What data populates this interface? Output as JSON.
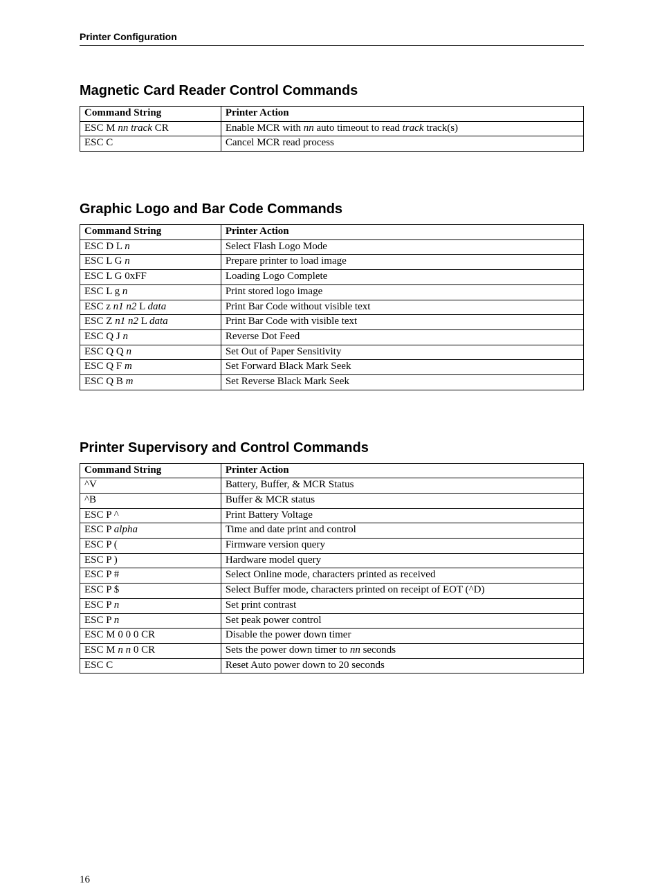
{
  "header": "Printer Configuration",
  "page_number": "16",
  "sections": {
    "mcr": {
      "title": "Magnetic Card Reader Control Commands",
      "columns": [
        "Command String",
        "Printer Action"
      ],
      "rows": [
        {
          "cmd_pre": "ESC M ",
          "cmd_it1": "nn track",
          "cmd_post": " CR",
          "act_pre": "Enable MCR with ",
          "act_it1": "nn",
          "act_mid": " auto timeout to read ",
          "act_it2": "track",
          "act_post": " track(s)"
        },
        {
          "cmd_pre": "ESC C",
          "act_pre": "Cancel MCR read process"
        }
      ]
    },
    "logo": {
      "title": "Graphic Logo and Bar Code Commands",
      "columns": [
        "Command String",
        "Printer Action"
      ],
      "rows": [
        {
          "cmd_pre": "ESC D L ",
          "cmd_it1": "n",
          "act_pre": "Select Flash Logo Mode"
        },
        {
          "cmd_pre": "ESC L G ",
          "cmd_it1": "n",
          "act_pre": "Prepare printer to load image"
        },
        {
          "cmd_pre": "ESC L G 0xFF",
          "act_pre": "Loading Logo Complete"
        },
        {
          "cmd_pre": "ESC L g ",
          "cmd_it1": "n",
          "act_pre": "Print stored logo image"
        },
        {
          "cmd_pre": "ESC z ",
          "cmd_it1": "n1 n2",
          "cmd_mid": " L ",
          "cmd_it2": "data",
          "act_pre": "Print Bar Code without visible text"
        },
        {
          "cmd_pre": "ESC Z ",
          "cmd_it1": "n1 n2",
          "cmd_mid": " L ",
          "cmd_it2": "data",
          "act_pre": "Print Bar Code with visible text"
        },
        {
          "cmd_pre": "ESC Q J ",
          "cmd_it1": "n",
          "act_pre": "Reverse Dot Feed"
        },
        {
          "cmd_pre": "ESC Q Q ",
          "cmd_it1": "n",
          "act_pre": "Set Out of Paper Sensitivity"
        },
        {
          "cmd_pre": "ESC Q F ",
          "cmd_it1": "m",
          "act_pre": "Set Forward Black Mark Seek"
        },
        {
          "cmd_pre": "ESC Q B ",
          "cmd_it1": "m",
          "act_pre": "Set Reverse Black Mark Seek"
        }
      ]
    },
    "super": {
      "title": "Printer Supervisory and Control Commands",
      "columns": [
        "Command String",
        "Printer Action"
      ],
      "rows": [
        {
          "cmd_pre": "^V",
          "act_pre": "Battery, Buffer, & MCR Status"
        },
        {
          "cmd_pre": "^B",
          "act_pre": "Buffer & MCR status"
        },
        {
          "cmd_pre": "ESC P ^",
          "act_pre": "Print Battery Voltage"
        },
        {
          "cmd_pre": "ESC P ",
          "cmd_it1": "alpha",
          "act_pre": "Time and date print and control"
        },
        {
          "cmd_pre": "ESC P (",
          "act_pre": "Firmware version query"
        },
        {
          "cmd_pre": "ESC P )",
          "act_pre": "Hardware model query"
        },
        {
          "cmd_pre": "ESC P #",
          "act_pre": "Select Online mode, characters printed as received"
        },
        {
          "cmd_pre": "ESC P $",
          "act_pre": "Select Buffer mode, characters printed on receipt of EOT (^D)"
        },
        {
          "cmd_pre": "ESC P ",
          "cmd_it1": "n",
          "act_pre": "Set print contrast"
        },
        {
          "cmd_pre": "ESC P ",
          "cmd_it1": "n",
          "act_pre": "Set peak power control"
        },
        {
          "cmd_pre": "ESC M 0 0 0 CR",
          "act_pre": "Disable the power down timer"
        },
        {
          "cmd_pre": "ESC M ",
          "cmd_it1": "n n",
          "cmd_mid": " 0 CR",
          "act_pre": "Sets the power down timer to ",
          "act_it1": "nn",
          "act_post": " seconds"
        },
        {
          "cmd_pre": "ESC C",
          "act_pre": "Reset Auto power down to 20 seconds"
        }
      ]
    }
  }
}
